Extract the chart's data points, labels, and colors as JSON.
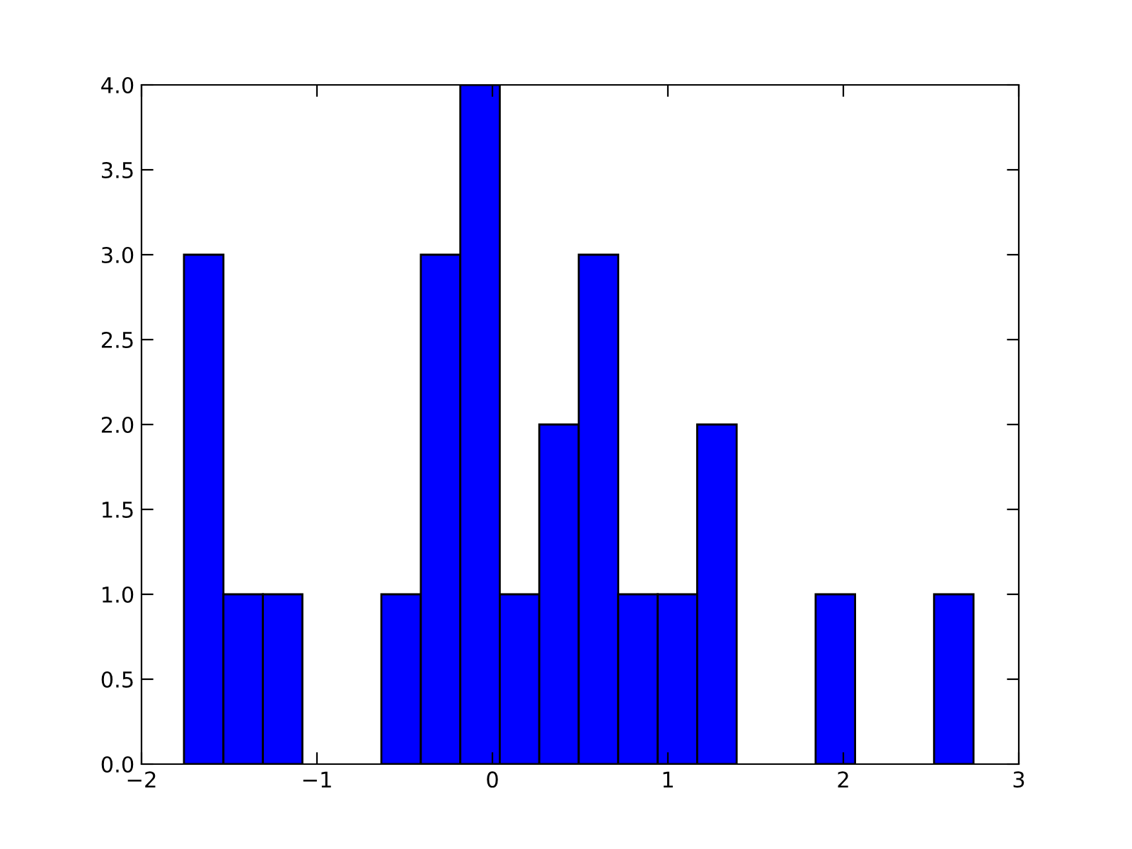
{
  "chart_data": {
    "type": "histogram",
    "bins": [
      -1.758,
      -1.533,
      -1.308,
      -1.083,
      -0.858,
      -0.633,
      -0.408,
      -0.183,
      0.042,
      0.267,
      0.492,
      0.717,
      0.942,
      1.167,
      1.392,
      1.617,
      1.842,
      2.067,
      2.292,
      2.517,
      2.742
    ],
    "values": [
      3,
      1,
      1,
      0,
      0,
      1,
      3,
      4,
      1,
      2,
      3,
      1,
      1,
      2,
      0,
      0,
      1,
      0,
      0,
      1
    ],
    "color": "#0000ff",
    "xlim": [
      -2,
      3
    ],
    "xticks": [
      {
        "value": -2,
        "label": "−2"
      },
      {
        "value": -1,
        "label": "−1"
      },
      0,
      1,
      2,
      3
    ],
    "ylim": [
      0,
      4
    ],
    "yticks": [
      {
        "value": 0,
        "label": "0.0"
      },
      {
        "value": 0.5,
        "label": "0.5"
      },
      {
        "value": 1,
        "label": "1.0"
      },
      {
        "value": 1.5,
        "label": "1.5"
      },
      {
        "value": 2,
        "label": "2.0"
      },
      {
        "value": 2.5,
        "label": "2.5"
      },
      {
        "value": 3,
        "label": "3.0"
      },
      {
        "value": 3.5,
        "label": "3.5"
      },
      {
        "value": 4,
        "label": "4.0"
      }
    ],
    "grid": false
  }
}
